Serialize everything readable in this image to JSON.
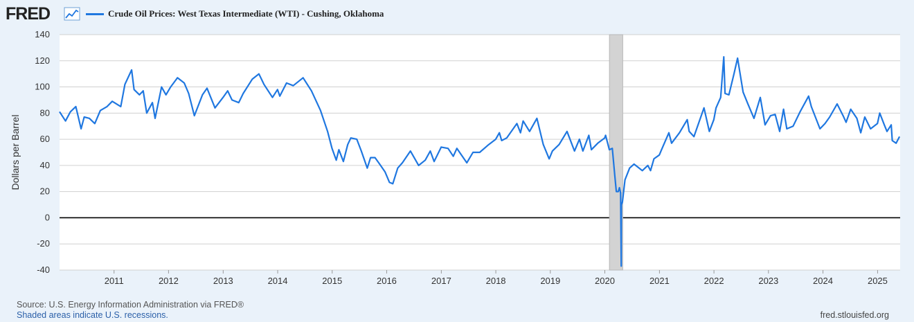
{
  "brand": {
    "name": "FRED"
  },
  "footer": {
    "source": "Source: U.S. Energy Information Administration via FRED®",
    "recessions": "Shaded areas indicate U.S. recessions.",
    "url": "fred.stlouisfed.org"
  },
  "chart_data": {
    "type": "line",
    "title": "Crude Oil Prices: West Texas Intermediate (WTI) - Cushing, Oklahoma",
    "xlabel": "",
    "ylabel": "Dollars per Barrel",
    "ylim": [
      -40,
      140
    ],
    "xlim": [
      "2010-01-01",
      "2025-06-01"
    ],
    "yticks": [
      140,
      120,
      100,
      80,
      60,
      40,
      20,
      0,
      -20,
      -40
    ],
    "xticks": [
      "2011",
      "2012",
      "2013",
      "2014",
      "2015",
      "2016",
      "2017",
      "2018",
      "2019",
      "2020",
      "2021",
      "2022",
      "2023",
      "2024",
      "2025"
    ],
    "grid": true,
    "legend": "top-left",
    "line_color": "#1f77e0",
    "recession": {
      "start": "2020-02-01",
      "end": "2020-04-30"
    },
    "series": [
      {
        "name": "Crude Oil Prices: West Texas Intermediate (WTI) - Cushing, Oklahoma",
        "points": [
          [
            "2010-01-01",
            81
          ],
          [
            "2010-02-10",
            74
          ],
          [
            "2010-03-15",
            81
          ],
          [
            "2010-04-20",
            85
          ],
          [
            "2010-05-25",
            68
          ],
          [
            "2010-06-15",
            77
          ],
          [
            "2010-07-20",
            76
          ],
          [
            "2010-08-25",
            72
          ],
          [
            "2010-10-01",
            82
          ],
          [
            "2010-11-15",
            85
          ],
          [
            "2010-12-20",
            89
          ],
          [
            "2011-02-15",
            85
          ],
          [
            "2011-03-15",
            102
          ],
          [
            "2011-04-29",
            113
          ],
          [
            "2011-05-15",
            98
          ],
          [
            "2011-06-20",
            94
          ],
          [
            "2011-07-15",
            97
          ],
          [
            "2011-08-08",
            80
          ],
          [
            "2011-09-15",
            88
          ],
          [
            "2011-10-03",
            76
          ],
          [
            "2011-11-15",
            100
          ],
          [
            "2011-12-15",
            94
          ],
          [
            "2012-01-15",
            100
          ],
          [
            "2012-03-01",
            107
          ],
          [
            "2012-04-15",
            103
          ],
          [
            "2012-05-15",
            95
          ],
          [
            "2012-06-22",
            78
          ],
          [
            "2012-08-15",
            94
          ],
          [
            "2012-09-15",
            99
          ],
          [
            "2012-11-07",
            84
          ],
          [
            "2012-12-31",
            92
          ],
          [
            "2013-01-31",
            97
          ],
          [
            "2013-03-01",
            90
          ],
          [
            "2013-04-15",
            88
          ],
          [
            "2013-05-15",
            95
          ],
          [
            "2013-07-15",
            106
          ],
          [
            "2013-08-28",
            110
          ],
          [
            "2013-10-01",
            102
          ],
          [
            "2013-11-27",
            92
          ],
          [
            "2013-12-31",
            98
          ],
          [
            "2014-01-15",
            93
          ],
          [
            "2014-03-01",
            103
          ],
          [
            "2014-04-15",
            101
          ],
          [
            "2014-06-20",
            107
          ],
          [
            "2014-08-15",
            97
          ],
          [
            "2014-10-15",
            82
          ],
          [
            "2014-12-01",
            66
          ],
          [
            "2014-12-31",
            53
          ],
          [
            "2015-01-28",
            44
          ],
          [
            "2015-02-15",
            52
          ],
          [
            "2015-03-17",
            43
          ],
          [
            "2015-04-15",
            56
          ],
          [
            "2015-05-06",
            61
          ],
          [
            "2015-06-15",
            60
          ],
          [
            "2015-07-15",
            51
          ],
          [
            "2015-08-24",
            38
          ],
          [
            "2015-09-15",
            46
          ],
          [
            "2015-10-15",
            46
          ],
          [
            "2015-11-15",
            41
          ],
          [
            "2015-12-21",
            35
          ],
          [
            "2016-01-20",
            27
          ],
          [
            "2016-02-11",
            26
          ],
          [
            "2016-03-15",
            38
          ],
          [
            "2016-04-15",
            42
          ],
          [
            "2016-06-08",
            51
          ],
          [
            "2016-08-02",
            40
          ],
          [
            "2016-09-15",
            44
          ],
          [
            "2016-10-19",
            51
          ],
          [
            "2016-11-14",
            43
          ],
          [
            "2016-12-31",
            54
          ],
          [
            "2017-02-15",
            53
          ],
          [
            "2017-03-22",
            47
          ],
          [
            "2017-04-15",
            53
          ],
          [
            "2017-06-21",
            42
          ],
          [
            "2017-08-01",
            50
          ],
          [
            "2017-09-15",
            50
          ],
          [
            "2017-11-15",
            56
          ],
          [
            "2017-12-31",
            60
          ],
          [
            "2018-01-25",
            65
          ],
          [
            "2018-02-09",
            59
          ],
          [
            "2018-03-15",
            61
          ],
          [
            "2018-05-22",
            72
          ],
          [
            "2018-06-15",
            65
          ],
          [
            "2018-07-03",
            74
          ],
          [
            "2018-08-15",
            66
          ],
          [
            "2018-10-03",
            76
          ],
          [
            "2018-11-15",
            56
          ],
          [
            "2018-12-24",
            45
          ],
          [
            "2019-01-15",
            51
          ],
          [
            "2019-03-01",
            56
          ],
          [
            "2019-04-23",
            66
          ],
          [
            "2019-06-12",
            51
          ],
          [
            "2019-07-15",
            60
          ],
          [
            "2019-08-07",
            51
          ],
          [
            "2019-09-16",
            63
          ],
          [
            "2019-10-03",
            52
          ],
          [
            "2019-11-15",
            57
          ],
          [
            "2019-12-31",
            61
          ],
          [
            "2020-01-06",
            63
          ],
          [
            "2020-01-31",
            52
          ],
          [
            "2020-02-20",
            53
          ],
          [
            "2020-03-09",
            31
          ],
          [
            "2020-03-18",
            20
          ],
          [
            "2020-03-31",
            20
          ],
          [
            "2020-04-08",
            23
          ],
          [
            "2020-04-16",
            19
          ],
          [
            "2020-04-20",
            -37
          ],
          [
            "2020-04-21",
            10
          ],
          [
            "2020-04-28",
            12
          ],
          [
            "2020-05-15",
            29
          ],
          [
            "2020-06-15",
            38
          ],
          [
            "2020-07-15",
            41
          ],
          [
            "2020-09-08",
            36
          ],
          [
            "2020-10-15",
            40
          ],
          [
            "2020-11-02",
            36
          ],
          [
            "2020-11-25",
            45
          ],
          [
            "2020-12-31",
            48
          ],
          [
            "2021-01-15",
            52
          ],
          [
            "2021-03-05",
            65
          ],
          [
            "2021-03-23",
            57
          ],
          [
            "2021-05-15",
            65
          ],
          [
            "2021-07-06",
            75
          ],
          [
            "2021-07-19",
            66
          ],
          [
            "2021-08-20",
            62
          ],
          [
            "2021-10-26",
            84
          ],
          [
            "2021-12-01",
            66
          ],
          [
            "2021-12-31",
            75
          ],
          [
            "2022-01-15",
            84
          ],
          [
            "2022-02-15",
            92
          ],
          [
            "2022-03-08",
            123
          ],
          [
            "2022-03-16",
            95
          ],
          [
            "2022-04-11",
            94
          ],
          [
            "2022-05-15",
            110
          ],
          [
            "2022-06-08",
            122
          ],
          [
            "2022-07-15",
            96
          ],
          [
            "2022-08-16",
            87
          ],
          [
            "2022-09-26",
            76
          ],
          [
            "2022-11-07",
            92
          ],
          [
            "2022-12-09",
            71
          ],
          [
            "2023-01-15",
            78
          ],
          [
            "2023-02-15",
            79
          ],
          [
            "2023-03-17",
            66
          ],
          [
            "2023-04-12",
            83
          ],
          [
            "2023-05-04",
            68
          ],
          [
            "2023-06-15",
            70
          ],
          [
            "2023-08-01",
            81
          ],
          [
            "2023-09-27",
            93
          ],
          [
            "2023-10-15",
            85
          ],
          [
            "2023-12-12",
            68
          ],
          [
            "2024-01-15",
            72
          ],
          [
            "2024-02-15",
            77
          ],
          [
            "2024-04-05",
            87
          ],
          [
            "2024-05-15",
            78
          ],
          [
            "2024-06-04",
            73
          ],
          [
            "2024-07-05",
            83
          ],
          [
            "2024-08-15",
            76
          ],
          [
            "2024-09-10",
            65
          ],
          [
            "2024-10-07",
            77
          ],
          [
            "2024-11-15",
            68
          ],
          [
            "2024-12-31",
            72
          ],
          [
            "2025-01-15",
            80
          ],
          [
            "2025-02-15",
            71
          ],
          [
            "2025-03-05",
            66
          ],
          [
            "2025-04-02",
            71
          ],
          [
            "2025-04-09",
            59
          ],
          [
            "2025-05-05",
            57
          ],
          [
            "2025-05-28",
            62
          ]
        ]
      }
    ]
  }
}
